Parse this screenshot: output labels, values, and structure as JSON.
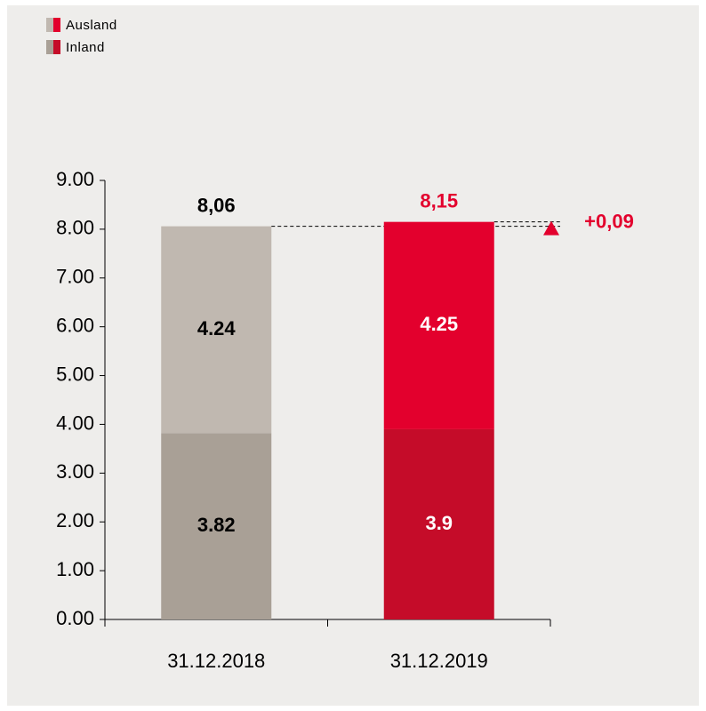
{
  "chart_data": {
    "type": "stacked_bar",
    "categories": [
      "31.12.2018",
      "31.12.2019"
    ],
    "series": [
      {
        "name": "Inland",
        "colors": [
          "#a9a096",
          "#c50c29"
        ],
        "values": [
          3.82,
          3.9
        ]
      },
      {
        "name": "Ausland",
        "colors": [
          "#c0b8b0",
          "#e3002d"
        ],
        "values": [
          4.24,
          4.25
        ]
      }
    ],
    "totals": [
      8.06,
      8.15
    ],
    "total_labels": [
      "8,06",
      "8,15"
    ],
    "change": {
      "value": 0.09,
      "label": "+0,09"
    },
    "ylim": [
      0,
      9
    ],
    "yticks": [
      {
        "value": 0,
        "label": "0.00"
      },
      {
        "value": 1,
        "label": "1.00"
      },
      {
        "value": 2,
        "label": "2.00"
      },
      {
        "value": 3,
        "label": "3.00"
      },
      {
        "value": 4,
        "label": "4.00"
      },
      {
        "value": 5,
        "label": "5.00"
      },
      {
        "value": 6,
        "label": "6.00"
      },
      {
        "value": 7,
        "label": "7.00"
      },
      {
        "value": 8,
        "label": "8.00"
      },
      {
        "value": 9,
        "label": "9.00"
      }
    ]
  }
}
